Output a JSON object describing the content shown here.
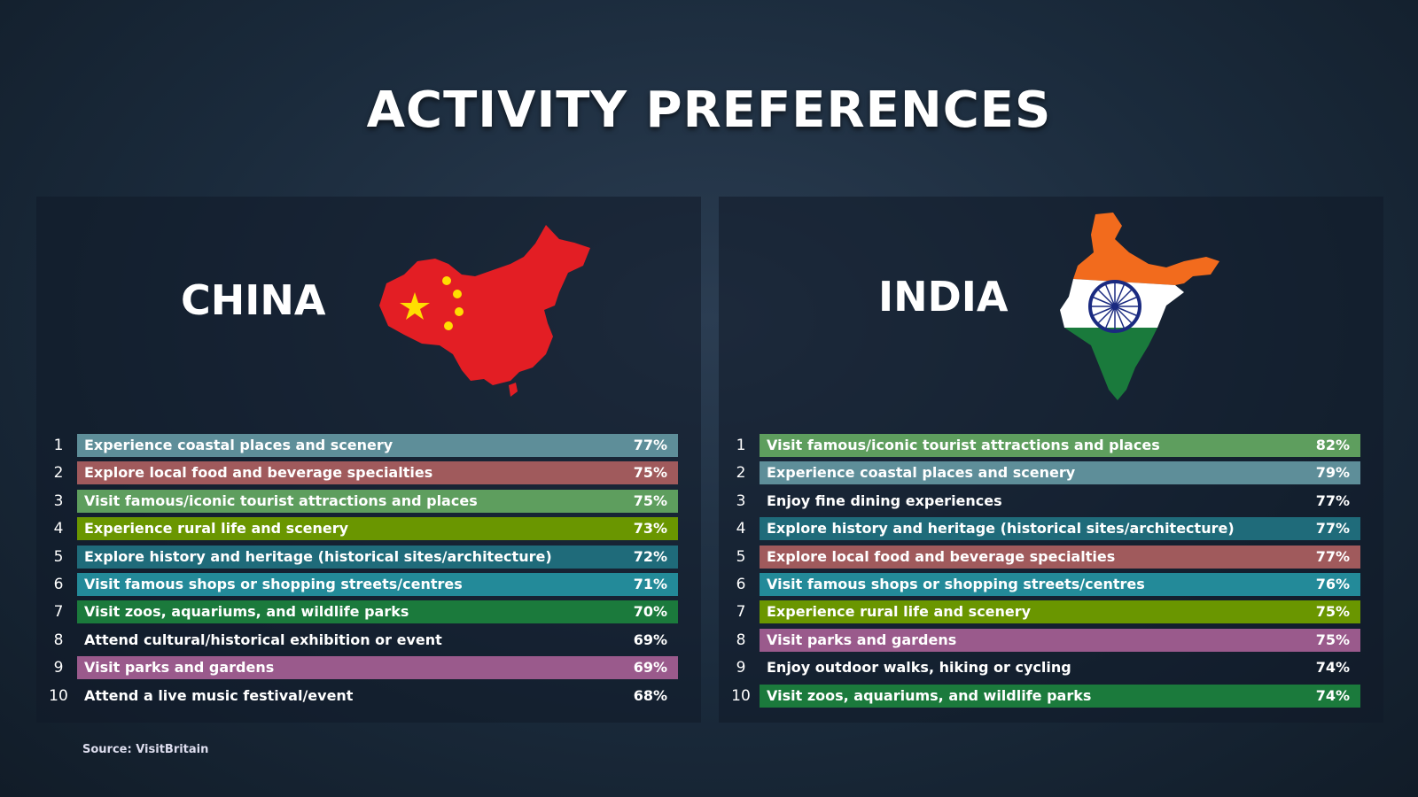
{
  "title": "ACTIVITY PREFERENCES",
  "panels": [
    {
      "country": "CHINA",
      "rows": [
        {
          "rank": "1",
          "label": "Experience coastal places and scenery",
          "value": "77%",
          "color": "#5e8e99"
        },
        {
          "rank": "2",
          "label": "Explore local food and beverage specialties",
          "value": "75%",
          "color": "#a05a5c"
        },
        {
          "rank": "3",
          "label": "Visit famous/iconic tourist attractions and places",
          "value": "75%",
          "color": "#5e9e5e"
        },
        {
          "rank": "4",
          "label": "Experience rural life and scenery",
          "value": "73%",
          "color": "#6a9600"
        },
        {
          "rank": "5",
          "label": "Explore history and heritage (historical sites/architecture)",
          "value": "72%",
          "color": "#1f6b7a"
        },
        {
          "rank": "6",
          "label": "Visit famous shops or shopping streets/centres",
          "value": "71%",
          "color": "#238a99"
        },
        {
          "rank": "7",
          "label": "Visit zoos, aquariums, and wildlife parks",
          "value": "70%",
          "color": "#1b7a3c"
        },
        {
          "rank": "8",
          "label": "Attend cultural/historical exhibition or event",
          "value": "69%"
        },
        {
          "rank": "9",
          "label": "Visit parks and gardens",
          "value": "69%",
          "color": "#9a5a8c"
        },
        {
          "rank": "10",
          "label": "Attend a live music festival/event",
          "value": "68%"
        }
      ]
    },
    {
      "country": "INDIA",
      "rows": [
        {
          "rank": "1",
          "label": "Visit famous/iconic tourist attractions and places",
          "value": "82%",
          "color": "#5e9e5e"
        },
        {
          "rank": "2",
          "label": "Experience coastal places and scenery",
          "value": "79%",
          "color": "#5e8e99"
        },
        {
          "rank": "3",
          "label": "Enjoy fine dining experiences",
          "value": "77%"
        },
        {
          "rank": "4",
          "label": "Explore history and heritage (historical sites/architecture)",
          "value": "77%",
          "color": "#1f6b7a"
        },
        {
          "rank": "5",
          "label": "Explore local food and beverage specialties",
          "value": "77%",
          "color": "#a05a5c"
        },
        {
          "rank": "6",
          "label": "Visit famous shops or shopping streets/centres",
          "value": "76%",
          "color": "#238a99"
        },
        {
          "rank": "7",
          "label": "Experience rural life and scenery",
          "value": "75%",
          "color": "#6a9600"
        },
        {
          "rank": "8",
          "label": "Visit parks and gardens",
          "value": "75%",
          "color": "#9a5a8c"
        },
        {
          "rank": "9",
          "label": "Enjoy outdoor walks, hiking or cycling",
          "value": "74%"
        },
        {
          "rank": "10",
          "label": "Visit zoos, aquariums, and wildlife parks",
          "value": "74%",
          "color": "#1b7a3c"
        }
      ]
    }
  ],
  "source": "Source: VisitBritain"
}
